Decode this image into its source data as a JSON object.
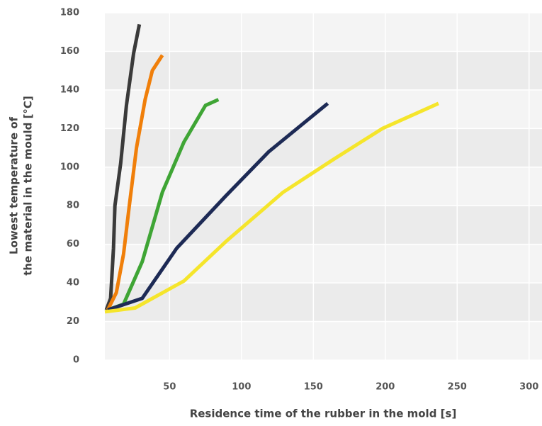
{
  "chart_data": {
    "type": "line",
    "xlabel": "Residence time of the rubber in the mold [s]",
    "ylabel": [
      "Lowest temperature of",
      "the material in the mould [°C]"
    ],
    "xlim": [
      5,
      309
    ],
    "xticks": [
      50,
      100,
      150,
      200,
      250,
      300
    ],
    "ylim": [
      0,
      180
    ],
    "yticks": [
      0,
      20,
      40,
      60,
      80,
      100,
      120,
      140,
      160,
      180
    ],
    "grid": true,
    "series": [
      {
        "color": "#3a3a3a",
        "x": [
          6,
          9,
          11,
          12,
          16,
          20,
          25,
          29
        ],
        "values": [
          26,
          32,
          58,
          80,
          102,
          132,
          159,
          174
        ]
      },
      {
        "color": "#f07f0a",
        "x": [
          7,
          13,
          18,
          22,
          27,
          33,
          38,
          45
        ],
        "values": [
          26,
          35,
          55,
          80,
          110,
          135,
          150,
          158
        ]
      },
      {
        "color": "#3fa535",
        "x": [
          7,
          18,
          31,
          45,
          60,
          75,
          84
        ],
        "values": [
          26,
          29,
          51,
          87,
          113,
          132,
          135
        ]
      },
      {
        "color": "#1d2a55",
        "x": [
          7,
          31,
          55,
          89,
          119,
          160
        ],
        "values": [
          26,
          32,
          58,
          85,
          108,
          133
        ]
      },
      {
        "color": "#f5e52b",
        "x": [
          5,
          26,
          60,
          90,
          129,
          164,
          198,
          237
        ],
        "values": [
          25,
          27,
          41,
          62,
          87,
          104,
          120,
          133
        ]
      }
    ]
  }
}
